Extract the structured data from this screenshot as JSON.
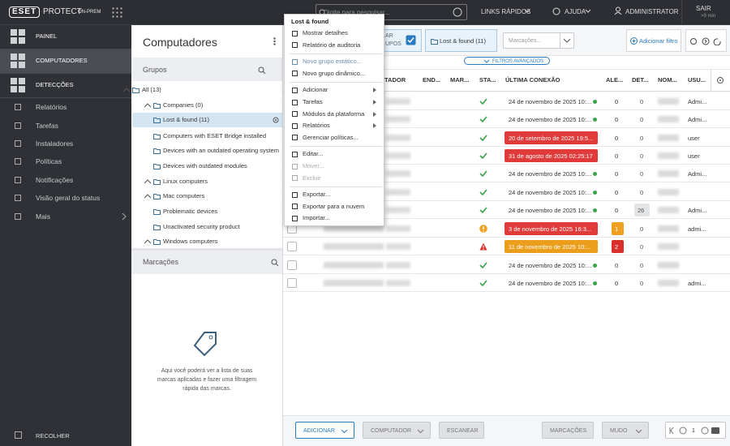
{
  "topbar": {
    "logo": "ESET",
    "product": "PROTECT",
    "edition": "ON-PREM",
    "search_placeholder": "Digite para pesquisar...",
    "quick_links": "LINKS RÁPIDOS",
    "help": "AJUDA",
    "user": "ADMINISTRATOR",
    "logout": "SAIR",
    "session": ">9 min"
  },
  "sidebar": {
    "items": [
      {
        "label": "PAINEL",
        "major": true
      },
      {
        "label": "COMPUTADORES",
        "major": true,
        "active": true
      },
      {
        "label": "DETECÇÕES",
        "major": true
      },
      {
        "label": "Relatórios"
      },
      {
        "label": "Tarefas"
      },
      {
        "label": "Instaladores"
      },
      {
        "label": "Políticas"
      },
      {
        "label": "Notificações"
      },
      {
        "label": "Visão geral do status"
      },
      {
        "label": "Mais",
        "submenu": true
      }
    ],
    "collapse": "RECOLHER"
  },
  "groups_panel": {
    "title": "Computadores",
    "groups_heading": "Grupos",
    "tree": [
      {
        "label": "All (13)",
        "level": 0,
        "expandable": true
      },
      {
        "label": "Companies (0)",
        "level": 1,
        "expandable": true
      },
      {
        "label": "Lost & found (11)",
        "level": 1,
        "selected": true
      },
      {
        "label": "Computers with ESET Bridge installed",
        "level": 1
      },
      {
        "label": "Devices with an outdated operating system",
        "level": 1
      },
      {
        "label": "Devices with outdated modules",
        "level": 1
      },
      {
        "label": "Linux computers",
        "level": 1,
        "expandable": true
      },
      {
        "label": "Mac computers",
        "level": 1,
        "expandable": true
      },
      {
        "label": "Problematic devices",
        "level": 1
      },
      {
        "label": "Unactivated security product",
        "level": 1
      },
      {
        "label": "Windows computers",
        "level": 1,
        "expandable": true
      }
    ],
    "tags_heading": "Marcações",
    "tags_empty": "Aqui você poderá ver a lista de suas marcas aplicadas e fazer uma filtragem rápida das marcas."
  },
  "toolbar": {
    "subgroups_part_1": "AR",
    "subgroups_part_2": "UPOS",
    "group_filter": "Lost & found (11)",
    "tags_placeholder": "Marcações...",
    "add_filter": "Adicionar filtro",
    "advanced_filters": "FILTROS AVANÇADOS"
  },
  "table": {
    "headers": [
      "TADOR",
      "END...",
      "MAR...",
      "STA...",
      "ÚLTIMA CONEXÃO",
      "ALE...",
      "DET...",
      "NOM...",
      "USU..."
    ],
    "rows": [
      {
        "status": "ok",
        "last_connection": "24 de novembro de 2025 10:...",
        "connection": "ok",
        "alerts": 0,
        "detections": 0,
        "user": "Admi..."
      },
      {
        "status": "ok",
        "last_connection": "24 de novembro de 2025 10:...",
        "connection": "ok",
        "alerts": 0,
        "detections": 0,
        "user": "Admi..."
      },
      {
        "status": "ok",
        "last_connection": "20 de setembro de 2025 19:5...",
        "connection": "overdue",
        "alerts": 0,
        "detections": 0,
        "user": "user"
      },
      {
        "status": "ok",
        "last_connection": "31 de agosto de 2025 02:25:17",
        "connection": "overdue",
        "alerts": 0,
        "detections": 0,
        "user": "user"
      },
      {
        "status": "ok",
        "last_connection": "24 de novembro de 2025 10:...",
        "connection": "ok",
        "alerts": 0,
        "detections": 0,
        "user": "Admi..."
      },
      {
        "status": "ok",
        "last_connection": "24 de novembro de 2025 10:...",
        "connection": "ok",
        "alerts": 0,
        "detections": 0
      },
      {
        "status": "ok",
        "last_connection": "24 de novembro de 2025 10:...",
        "connection": "ok",
        "alerts": 0,
        "detections": 26,
        "user": "Admi..."
      },
      {
        "status": "warning",
        "last_connection": "3 de novembro de 2025 16:3...",
        "connection": "overdue",
        "alerts": 1,
        "alert_color": "#f0a020",
        "detections": 0,
        "user": "admi..."
      },
      {
        "status": "error",
        "last_connection": "11 de novembro de 2025 10:...",
        "connection": "late",
        "alerts": 2,
        "alert_color": "#d9302c",
        "detections": 0
      },
      {
        "status": "ok",
        "last_connection": "24 de novembro de 2025 10:...",
        "connection": "ok",
        "alerts": 0,
        "detections": 0
      },
      {
        "status": "ok",
        "last_connection": "24 de novembro de 2025 10:...",
        "connection": "ok",
        "alerts": 0,
        "detections": 0,
        "user": "admi..."
      }
    ]
  },
  "context_menu": {
    "title": "Lost & found",
    "items": [
      {
        "label": "Mostrar detalhes"
      },
      {
        "label": "Relatório de auditoria"
      },
      {
        "label": "Novo grupo estático...",
        "separator_before": true,
        "highlight": true
      },
      {
        "label": "Novo grupo dinâmico..."
      },
      {
        "label": "Adicionar",
        "separator_before": true,
        "submenu": true
      },
      {
        "label": "Tarefas",
        "submenu": true
      },
      {
        "label": "Módulos da plataforma",
        "submenu": true
      },
      {
        "label": "Relatórios",
        "submenu": true
      },
      {
        "label": "Gerenciar políticas..."
      },
      {
        "label": "Editar...",
        "separator_before": true
      },
      {
        "label": "Mover...",
        "disabled": true
      },
      {
        "label": "Excluir",
        "disabled": true
      },
      {
        "label": "Exportar...",
        "separator_before": true
      },
      {
        "label": "Exportar para a nuvem"
      },
      {
        "label": "Importar..."
      }
    ]
  },
  "bottom_bar": {
    "add": "ADICIONAR",
    "computer": "COMPUTADOR",
    "scan": "ESCANEAR",
    "tags": "MARCAÇÕES",
    "mute": "MUDO",
    "page": 1
  }
}
